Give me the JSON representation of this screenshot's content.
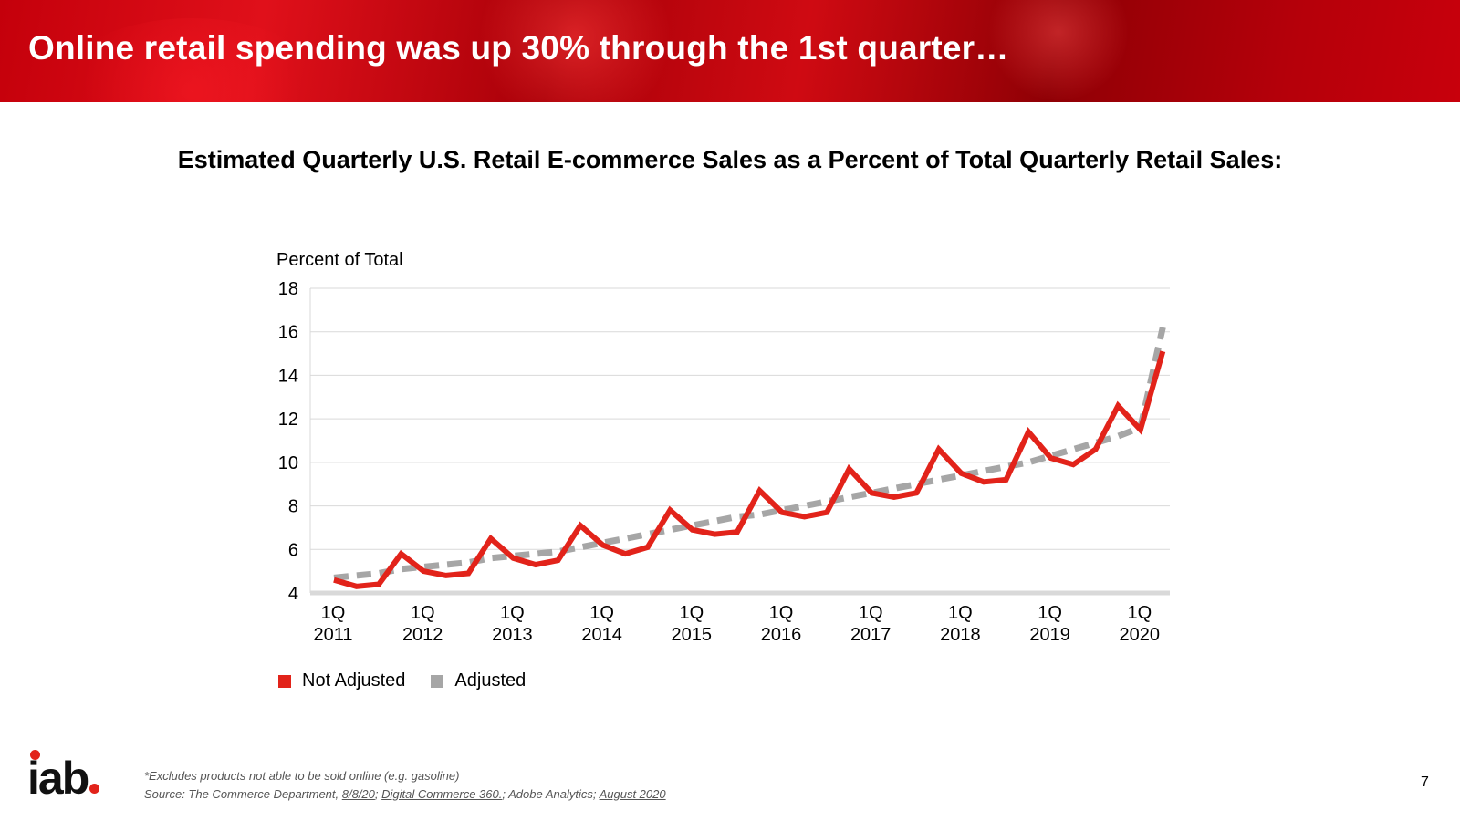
{
  "header": {
    "title": "Online retail spending was up 30% through the 1st quarter…"
  },
  "subtitle": "Estimated Quarterly U.S. Retail E-commerce Sales as a Percent of Total Quarterly Retail Sales:",
  "colors": {
    "banner": "#c4000b",
    "not_adjusted": "#e2231a",
    "adjusted": "#a6a6a6",
    "grid": "#d9d9d9",
    "logo_dot": "#e2231a"
  },
  "chart_data": {
    "type": "line",
    "ylabel": "Percent of Total",
    "ylim": [
      4,
      18
    ],
    "yticks": [
      4,
      6,
      8,
      10,
      12,
      14,
      16,
      18
    ],
    "grid": true,
    "legend_position": "bottom-left",
    "x": [
      "1Q 2011",
      "2Q 2011",
      "3Q 2011",
      "4Q 2011",
      "1Q 2012",
      "2Q 2012",
      "3Q 2012",
      "4Q 2012",
      "1Q 2013",
      "2Q 2013",
      "3Q 2013",
      "4Q 2013",
      "1Q 2014",
      "2Q 2014",
      "3Q 2014",
      "4Q 2014",
      "1Q 2015",
      "2Q 2015",
      "3Q 2015",
      "4Q 2015",
      "1Q 2016",
      "2Q 2016",
      "3Q 2016",
      "4Q 2016",
      "1Q 2017",
      "2Q 2017",
      "3Q 2017",
      "4Q 2017",
      "1Q 2018",
      "2Q 2018",
      "3Q 2018",
      "4Q 2018",
      "1Q 2019",
      "2Q 2019",
      "3Q 2019",
      "4Q 2019",
      "1Q 2020",
      "2Q 2020"
    ],
    "xtick_labels": [
      {
        "line1": "1Q",
        "line2": "2011"
      },
      {
        "line1": "1Q",
        "line2": "2012"
      },
      {
        "line1": "1Q",
        "line2": "2013"
      },
      {
        "line1": "1Q",
        "line2": "2014"
      },
      {
        "line1": "1Q",
        "line2": "2015"
      },
      {
        "line1": "1Q",
        "line2": "2016"
      },
      {
        "line1": "1Q",
        "line2": "2017"
      },
      {
        "line1": "1Q",
        "line2": "2018"
      },
      {
        "line1": "1Q",
        "line2": "2019"
      },
      {
        "line1": "1Q",
        "line2": "2020"
      }
    ],
    "series": [
      {
        "name": "Not Adjusted",
        "style": "solid",
        "values": [
          4.6,
          4.3,
          4.4,
          5.8,
          5.0,
          4.8,
          4.9,
          6.5,
          5.6,
          5.3,
          5.5,
          7.1,
          6.2,
          5.8,
          6.1,
          7.8,
          6.9,
          6.7,
          6.8,
          8.7,
          7.7,
          7.5,
          7.7,
          9.7,
          8.6,
          8.4,
          8.6,
          10.6,
          9.5,
          9.1,
          9.2,
          11.4,
          10.2,
          9.9,
          10.6,
          12.6,
          11.5,
          15.1
        ]
      },
      {
        "name": "Adjusted",
        "style": "dashed",
        "values": [
          4.7,
          4.8,
          4.9,
          5.1,
          5.2,
          5.3,
          5.4,
          5.6,
          5.7,
          5.8,
          5.9,
          6.1,
          6.3,
          6.5,
          6.7,
          6.9,
          7.1,
          7.3,
          7.5,
          7.6,
          7.8,
          8.0,
          8.2,
          8.4,
          8.6,
          8.8,
          9.0,
          9.2,
          9.4,
          9.6,
          9.8,
          10.0,
          10.3,
          10.6,
          10.9,
          11.2,
          11.6,
          16.2
        ]
      }
    ]
  },
  "legend": {
    "not_adjusted": "Not Adjusted",
    "adjusted": "Adjusted"
  },
  "footnote": {
    "line1": "*Excludes products not able to be sold online (e.g. gasoline)",
    "source_prefix": "Source: The Commerce Department, ",
    "source_date": "8/8/20",
    "sep1": "; ",
    "source_dc360": "Digital Commerce 360.",
    "sep2": "; Adobe Analytics; ",
    "source_aug": "August 2020"
  },
  "logo": {
    "text": "iab"
  },
  "page_number": "7"
}
